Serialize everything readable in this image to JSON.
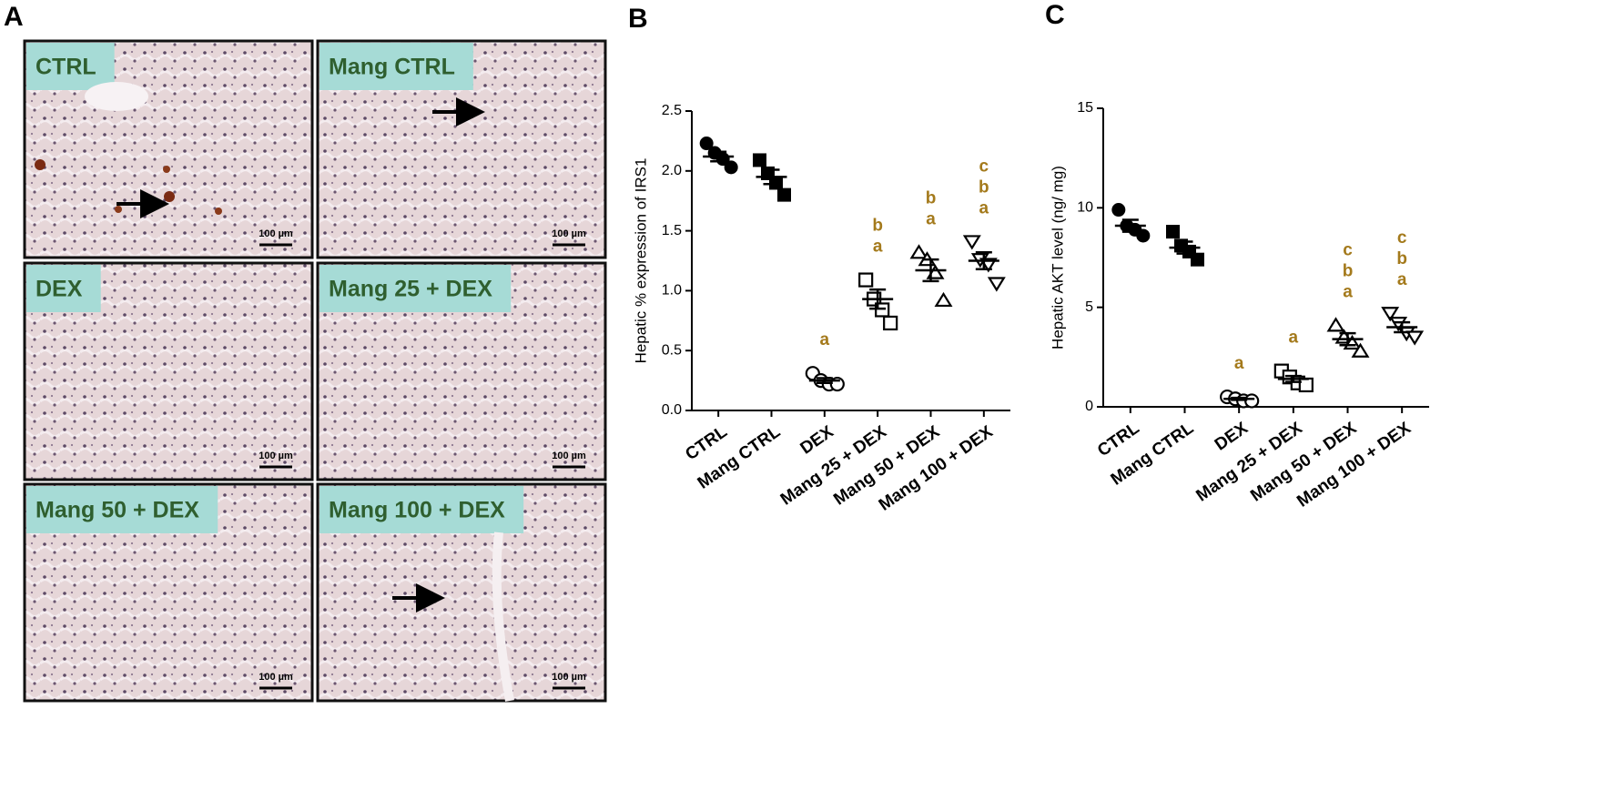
{
  "figure_a": {
    "panel_label": "A",
    "images": [
      {
        "label": "CTRL",
        "scale_bar": "100 µm"
      },
      {
        "label": "Mang CTRL",
        "scale_bar": "100 µm"
      },
      {
        "label": "DEX",
        "scale_bar": "100 µm"
      },
      {
        "label": "Mang 25 + DEX",
        "scale_bar": "100 µm"
      },
      {
        "label": "Mang 50 + DEX",
        "scale_bar": "100 µm"
      },
      {
        "label": "Mang 100 + DEX",
        "scale_bar": "100 µm"
      }
    ]
  },
  "chart_data": [
    {
      "type": "dot",
      "panel_label": "B",
      "y_label": "Hepatic % expression of IRS1",
      "categories": [
        "CTRL",
        "Mang CTRL",
        "DEX",
        "Mang 25 + DEX",
        "Mang 50 + DEX",
        "Mang 100 + DEX"
      ],
      "markers": [
        "circle-filled",
        "square-filled",
        "circle-open",
        "square-open",
        "triangle-open",
        "triangle-down-open"
      ],
      "points": [
        [
          2.23,
          2.15,
          2.1,
          2.03
        ],
        [
          2.09,
          1.98,
          1.9,
          1.8
        ],
        [
          0.31,
          0.25,
          0.22,
          0.22
        ],
        [
          1.09,
          0.93,
          0.84,
          0.73
        ],
        [
          1.32,
          1.26,
          1.15,
          0.92
        ],
        [
          1.41,
          1.26,
          1.22,
          1.06
        ]
      ],
      "means": [
        2.12,
        1.95,
        0.25,
        0.93,
        1.17,
        1.25
      ],
      "sems": [
        0.04,
        0.06,
        0.02,
        0.08,
        0.09,
        0.07
      ],
      "annotations": [
        [],
        [],
        [
          "a"
        ],
        [
          "b",
          "a"
        ],
        [
          "b",
          "a"
        ],
        [
          "c",
          "b",
          "a"
        ]
      ],
      "ylim": [
        0,
        2.5
      ],
      "yticks": [
        {
          "value": 0,
          "label": "0.0"
        },
        0.5,
        {
          "value": 1,
          "label": "1.0"
        },
        1.5,
        {
          "value": 2,
          "label": "2.0"
        },
        2.5
      ]
    },
    {
      "type": "dot",
      "panel_label": "C",
      "y_label": "Hepatic AKT level (ng/ mg)",
      "categories": [
        "CTRL",
        "Mang CTRL",
        "DEX",
        "Mang 25 + DEX",
        "Mang 50 + DEX",
        "Mang 100 + DEX"
      ],
      "markers": [
        "circle-filled",
        "square-filled",
        "circle-open",
        "square-open",
        "triangle-open",
        "triangle-down-open"
      ],
      "points": [
        [
          9.9,
          9.1,
          8.9,
          8.6
        ],
        [
          8.8,
          8.1,
          7.8,
          7.4
        ],
        [
          0.5,
          0.4,
          0.3,
          0.3
        ],
        [
          1.8,
          1.5,
          1.2,
          1.1
        ],
        [
          4.1,
          3.5,
          3.2,
          2.8
        ],
        [
          4.7,
          4.2,
          3.7,
          3.5
        ]
      ],
      "means": [
        9.1,
        8.0,
        0.4,
        1.4,
        3.4,
        4.0
      ],
      "sems": [
        0.3,
        0.3,
        0.05,
        0.15,
        0.3,
        0.25
      ],
      "annotations": [
        [],
        [],
        [
          "a"
        ],
        [
          "a"
        ],
        [
          "c",
          "b",
          "a"
        ],
        [
          "c",
          "b",
          "a"
        ]
      ],
      "ylim": [
        0,
        15
      ],
      "yticks": [
        0,
        5,
        10,
        15
      ]
    }
  ]
}
